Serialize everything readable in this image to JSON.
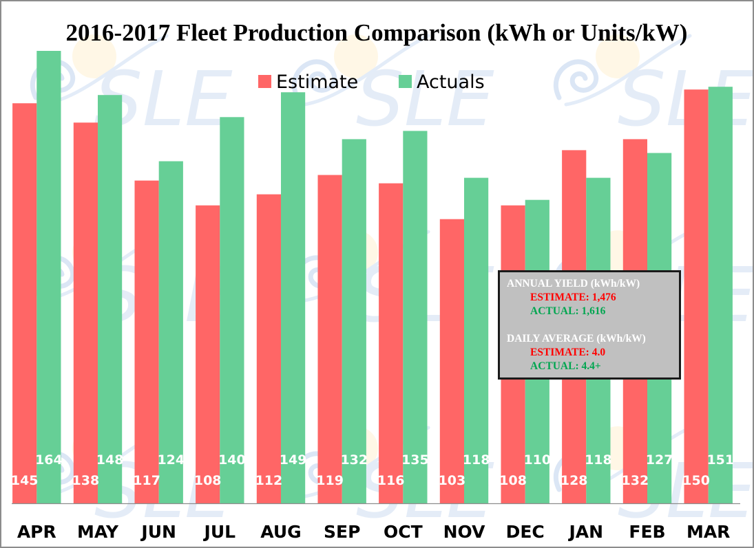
{
  "chart_data": {
    "type": "bar",
    "title": "2016-2017 Fleet Production Comparison (kWh or Units/kW)",
    "xlabel": "",
    "ylabel": "",
    "ylim": [
      0,
      164
    ],
    "grid": false,
    "legend_position": "top-center",
    "categories": [
      "APR",
      "MAY",
      "JUN",
      "JUL",
      "AUG",
      "SEP",
      "OCT",
      "NOV",
      "DEC",
      "JAN",
      "FEB",
      "MAR"
    ],
    "series": [
      {
        "name": "Estimate",
        "color": "#FF6666",
        "values": [
          145,
          138,
          117,
          108,
          112,
          119,
          116,
          103,
          108,
          128,
          132,
          150
        ]
      },
      {
        "name": "Actuals",
        "color": "#66CF96",
        "values": [
          164,
          148,
          124,
          140,
          149,
          132,
          135,
          118,
          110,
          118,
          127,
          151
        ]
      }
    ],
    "annotation": {
      "annual_header": "ANNUAL YIELD (kWh/kW)",
      "annual_estimate": "ESTIMATE: 1,476",
      "annual_actual": "ACTUAL: 1,616",
      "daily_header": "DAILY AVERAGE (kWh/kW)",
      "daily_estimate": "ESTIMATE: 4.0",
      "daily_actual": "ACTUAL: 4.4+"
    },
    "watermark": "SLE"
  }
}
